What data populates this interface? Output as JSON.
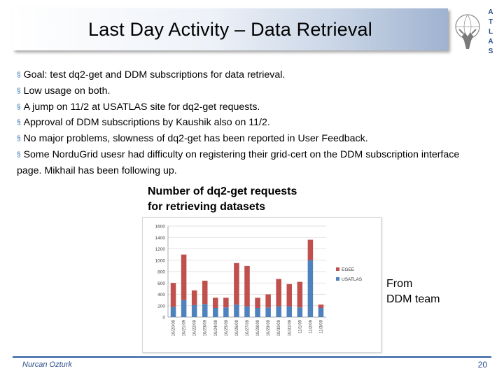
{
  "slide": {
    "title": "Last Day Activity – Data Retrieval",
    "logo_letters": [
      "A",
      "T",
      "L",
      "A",
      "S"
    ],
    "bullets": [
      "Goal: test dq2-get and DDM subscriptions for data retrieval.",
      "Low usage on both.",
      "A jump on 11/2 at USATLAS  site for dq2-get requests.",
      "Approval of DDM subscriptions by Kaushik also on 11/2.",
      "No major problems, slowness of dq2-get has been reported in User Feedback.",
      "Some NorduGrid usesr had difficulty on registering their grid-cert on the DDM subscription interface page. Mikhail has been following up."
    ],
    "bullet_marker": "§",
    "chart_caption_line1": "Number of dq2-get requests",
    "chart_caption_line2": "for retrieving datasets",
    "from_note_line1": "From",
    "from_note_line2": "DDM team",
    "footer_author": "Nurcan Ozturk",
    "page_number": "20"
  },
  "colors": {
    "egee": "#c0504d",
    "usatlas": "#4f81bd",
    "accent": "#2b5aa0"
  },
  "chart_data": {
    "type": "bar",
    "stacked": true,
    "categories": [
      "10/20/09",
      "10/21/09",
      "10/22/09",
      "10/23/09",
      "10/24/09",
      "10/25/09",
      "10/26/09",
      "10/27/09",
      "10/28/09",
      "10/29/09",
      "10/30/09",
      "10/31/09",
      "11/1/09",
      "11/2/09",
      "11/3/09"
    ],
    "series": [
      {
        "name": "USATLAS",
        "values": [
          180,
          300,
          210,
          230,
          160,
          170,
          220,
          190,
          160,
          170,
          190,
          190,
          170,
          1000,
          160
        ]
      },
      {
        "name": "EGEE",
        "values": [
          420,
          800,
          260,
          410,
          180,
          170,
          730,
          710,
          180,
          230,
          480,
          390,
          450,
          360,
          60
        ]
      }
    ],
    "ylim": [
      0,
      1600
    ],
    "yticks": [
      "0",
      "200",
      "400",
      "600",
      "800",
      "1000",
      "1200",
      "1400",
      "1600"
    ],
    "legend": "right",
    "grid": true
  }
}
